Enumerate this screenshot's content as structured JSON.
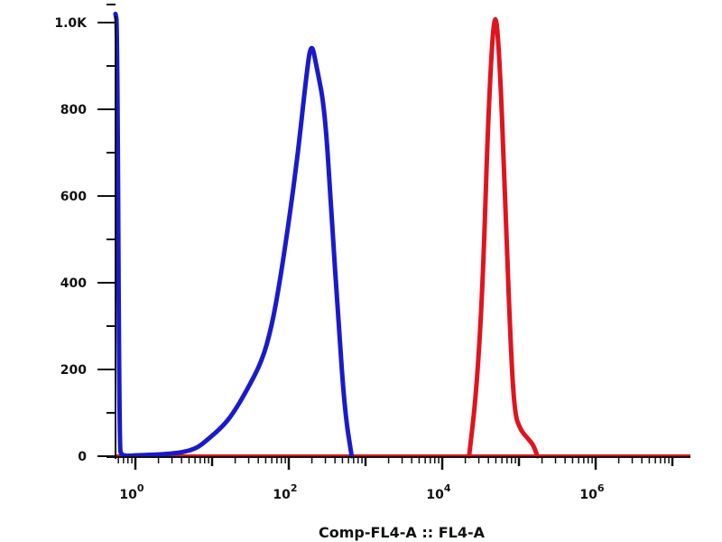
{
  "chart_data": {
    "type": "line",
    "title": "",
    "xlabel": "Comp-FL4-A :: FL4-A",
    "ylabel": "",
    "x_scale": "log",
    "xlim": [
      0.55,
      17000000
    ],
    "ylim": [
      0,
      1050
    ],
    "x_ticks": [
      {
        "base": "10",
        "exp": "0",
        "value": 1
      },
      {
        "base": "10",
        "exp": "2",
        "value": 100
      },
      {
        "base": "10",
        "exp": "4",
        "value": 10000
      },
      {
        "base": "10",
        "exp": "6",
        "value": 1000000
      }
    ],
    "y_ticks": [
      {
        "label": "0",
        "value": 0
      },
      {
        "label": "200",
        "value": 200
      },
      {
        "label": "400",
        "value": 400
      },
      {
        "label": "600",
        "value": 600
      },
      {
        "label": "800",
        "value": 800
      },
      {
        "label": "1.0K",
        "value": 1000
      }
    ],
    "grid": false,
    "series": [
      {
        "color": "#1a1acc",
        "x": [
          0.55,
          0.58,
          0.62,
          0.66,
          1,
          3,
          6,
          9,
          14,
          19,
          28,
          45,
          60,
          76,
          100,
          132,
          165,
          195,
          230,
          295,
          360,
          447,
          540,
          660
        ],
        "y": [
          1020,
          1000,
          20,
          0,
          2,
          5,
          15,
          40,
          70,
          100,
          150,
          220,
          300,
          400,
          540,
          700,
          860,
          960,
          900,
          800,
          560,
          300,
          100,
          0
        ]
      },
      {
        "color": "#e0141e",
        "x": [
          22400,
          28000,
          33900,
          40000,
          47900,
          55000,
          66100,
          76000,
          87100,
          105000,
          132000,
          155000,
          174000
        ],
        "y": [
          0,
          150,
          400,
          800,
          1040,
          950,
          600,
          300,
          100,
          60,
          40,
          25,
          0
        ]
      }
    ]
  }
}
